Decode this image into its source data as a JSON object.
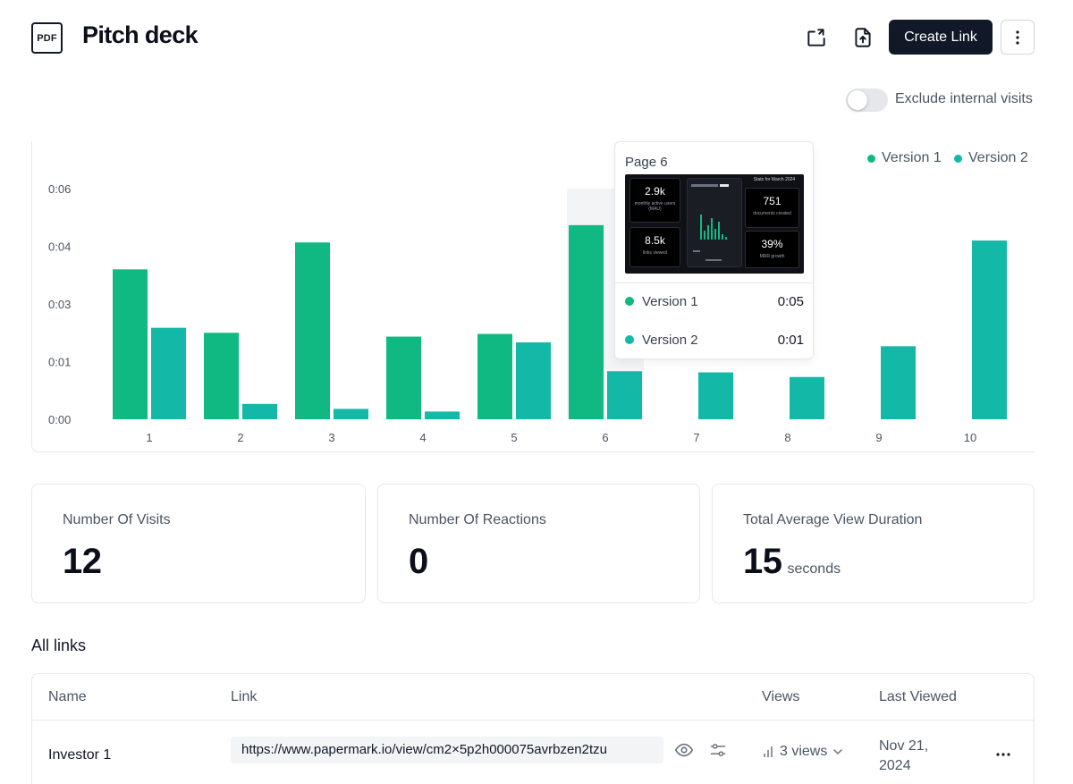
{
  "header": {
    "file_type": "PDF",
    "title": "Pitch deck",
    "create_link_label": "Create Link",
    "icons": [
      "switch-icon",
      "upload-file-icon",
      "more-vertical-icon"
    ]
  },
  "filters": {
    "exclude_internal_label": "Exclude internal visits",
    "exclude_internal_on": false
  },
  "colors": {
    "version1": "#10b981",
    "version2": "#14b8a6",
    "primary_button": "#111827"
  },
  "chart_data": {
    "type": "bar",
    "categories": [
      "1",
      "2",
      "3",
      "4",
      "5",
      "6",
      "7",
      "8",
      "9",
      "10"
    ],
    "y_ticks": [
      "0:00",
      "0:01",
      "0:03",
      "0:04",
      "0:06"
    ],
    "y_tick_seconds": [
      0,
      1.5,
      3,
      4.5,
      6
    ],
    "ylim": [
      0,
      6
    ],
    "series": [
      {
        "name": "Version 1",
        "values": [
          3.9,
          2.25,
          4.6,
          2.15,
          2.22,
          5.05,
          null,
          null,
          null,
          null
        ]
      },
      {
        "name": "Version 2",
        "values": [
          2.38,
          0.4,
          0.27,
          0.2,
          2.0,
          1.25,
          1.22,
          1.1,
          1.9,
          4.65
        ]
      }
    ],
    "highlighted_category": "6",
    "legend_position": "top-right",
    "grid": false
  },
  "tooltip": {
    "title": "Page 6",
    "rows": [
      {
        "label": "Version 1",
        "value": "0:05"
      },
      {
        "label": "Version 2",
        "value": "0:01"
      }
    ],
    "thumbnail": {
      "header": "Stats for March 2024",
      "cards": [
        {
          "value": "2.9k",
          "label": "monthly active users (MAU)"
        },
        {
          "value": "751",
          "label": "documents created"
        },
        {
          "value": "8.5k",
          "label": "links viewed"
        },
        {
          "value": "39%",
          "label": "MRR growth"
        }
      ]
    }
  },
  "stats": [
    {
      "label": "Number Of Visits",
      "value": "12",
      "unit": ""
    },
    {
      "label": "Number Of Reactions",
      "value": "0",
      "unit": ""
    },
    {
      "label": "Total Average View Duration",
      "value": "15",
      "unit": "seconds"
    }
  ],
  "links_section": {
    "title": "All links",
    "columns": [
      "Name",
      "Link",
      "Views",
      "Last Viewed"
    ],
    "rows": [
      {
        "name": "Investor 1",
        "url": "https://www.papermark.io/view/cm2×5p2h000075avrbzen2tzu",
        "views": "3 views",
        "last_viewed": "Nov 21, 2024"
      }
    ]
  }
}
